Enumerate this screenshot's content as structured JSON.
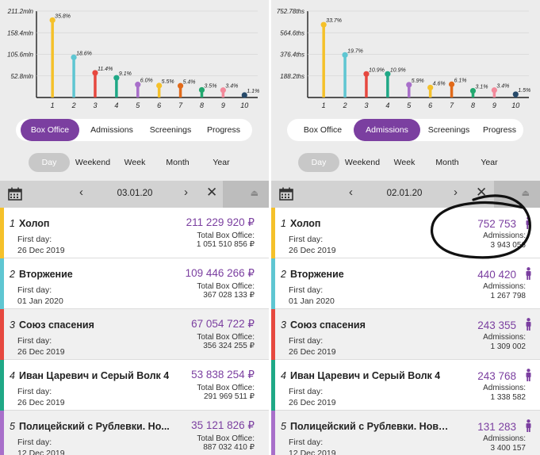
{
  "panels": [
    {
      "chart_data": {
        "type": "bar",
        "categories": [
          "1",
          "2",
          "3",
          "4",
          "5",
          "6",
          "7",
          "8",
          "9",
          "10"
        ],
        "values": [
          35.8,
          18.6,
          11.4,
          9.1,
          6.0,
          5.5,
          5.4,
          3.5,
          3.4,
          1.1
        ],
        "value_labels": [
          "35.8%",
          "18.6%",
          "11.4%",
          "9.1%",
          "6.0%",
          "5.5%",
          "5.4%",
          "3.5%",
          "3.4%",
          "1.1%"
        ],
        "yticks": [
          "211.2mln",
          "158.4mln",
          "105.6mln",
          "52.8mln"
        ],
        "ytick_values": [
          40.0,
          30.0,
          20.0,
          10.0
        ],
        "ylim": [
          0,
          40
        ],
        "colors": [
          "#f5c12a",
          "#5fc6d2",
          "#e6483f",
          "#1fa886",
          "#a86fca",
          "#f5c12a",
          "#e16a1a",
          "#23a86f",
          "#f38a9b",
          "#274a6a"
        ]
      },
      "tabs": [
        "Box Office",
        "Admissions",
        "Screenings",
        "Progress"
      ],
      "active_tab": 0,
      "periods": [
        "Day",
        "Weekend",
        "Week",
        "Month",
        "Year"
      ],
      "date": "03.01.20",
      "entries": [
        {
          "rank": "1",
          "title": "Холоп",
          "first_day_label": "First day:",
          "first_day": "26 Dec 2019",
          "value": "211 229 920 ₽",
          "total_label": "Total Box Office:",
          "total": "1 051 510 856 ₽",
          "color": "#f5c12a"
        },
        {
          "rank": "2",
          "title": "Вторжение",
          "first_day_label": "First day:",
          "first_day": "01 Jan 2020",
          "value": "109 446 266 ₽",
          "total_label": "Total Box Office:",
          "total": "367 028 133 ₽",
          "color": "#5fc6d2"
        },
        {
          "rank": "3",
          "title": "Союз спасения",
          "first_day_label": "First day:",
          "first_day": "26 Dec 2019",
          "value": "67 054 722 ₽",
          "total_label": "Total Box Office:",
          "total": "356 324 255 ₽",
          "color": "#e6483f"
        },
        {
          "rank": "4",
          "title": "Иван Царевич и Серый Волк 4",
          "first_day_label": "First day:",
          "first_day": "26 Dec 2019",
          "value": "53 838 254 ₽",
          "total_label": "Total Box Office:",
          "total": "291 969 511 ₽",
          "color": "#1fa886"
        },
        {
          "rank": "5",
          "title": "Полицейский с Рублевки. Но...",
          "first_day_label": "First day:",
          "first_day": "12 Dec 2019",
          "value": "35 121 826 ₽",
          "total_label": "Total Box Office:",
          "total": "887 032 410 ₽",
          "color": "#a86fca"
        }
      ]
    },
    {
      "chart_data": {
        "type": "bar",
        "categories": [
          "1",
          "2",
          "3",
          "4",
          "5",
          "6",
          "7",
          "8",
          "9",
          "10"
        ],
        "values": [
          33.7,
          19.7,
          10.9,
          10.9,
          5.9,
          4.6,
          6.1,
          3.1,
          3.4,
          1.5
        ],
        "value_labels": [
          "33.7%",
          "19.7%",
          "10.9%",
          "10.9%",
          "5.9%",
          "4.6%",
          "6.1%",
          "3.1%",
          "3.4%",
          "1.5%"
        ],
        "yticks": [
          "752.78ths",
          "564.6ths",
          "376.4ths",
          "188.2ths"
        ],
        "ytick_values": [
          40.0,
          30.0,
          20.0,
          10.0
        ],
        "ylim": [
          0,
          40
        ],
        "colors": [
          "#f5c12a",
          "#5fc6d2",
          "#e6483f",
          "#1fa886",
          "#a86fca",
          "#f5c12a",
          "#e16a1a",
          "#23a86f",
          "#f38a9b",
          "#274a6a"
        ]
      },
      "tabs": [
        "Box Office",
        "Admissions",
        "Screenings",
        "Progress"
      ],
      "active_tab": 1,
      "periods": [
        "Day",
        "Weekend",
        "Week",
        "Month",
        "Year"
      ],
      "date": "02.01.20",
      "entries": [
        {
          "rank": "1",
          "title": "Холоп",
          "first_day_label": "First day:",
          "first_day": "26 Dec 2019",
          "value": "752 753",
          "total_label": "Admissions:",
          "total": "3 943 056",
          "color": "#f5c12a"
        },
        {
          "rank": "2",
          "title": "Вторжение",
          "first_day_label": "First day:",
          "first_day": "01 Jan 2020",
          "value": "440 420",
          "total_label": "Admissions:",
          "total": "1 267 798",
          "color": "#5fc6d2"
        },
        {
          "rank": "3",
          "title": "Союз спасения",
          "first_day_label": "First day:",
          "first_day": "26 Dec 2019",
          "value": "243 355",
          "total_label": "Admissions:",
          "total": "1 309 002",
          "color": "#e6483f"
        },
        {
          "rank": "4",
          "title": "Иван Царевич и Серый Волк 4",
          "first_day_label": "First day:",
          "first_day": "26 Dec 2019",
          "value": "243 768",
          "total_label": "Admissions:",
          "total": "1 338 582",
          "color": "#1fa886"
        },
        {
          "rank": "5",
          "title": "Полицейский с Рублевки. Ново...",
          "first_day_label": "First day:",
          "first_day": "12 Dec 2019",
          "value": "131 283",
          "total_label": "Admissions:",
          "total": "3 400 157",
          "color": "#a86fca"
        }
      ]
    }
  ],
  "icons": {
    "calendar": "calendar-icon",
    "prev": "chevron-left-icon",
    "next": "chevron-right-icon",
    "close": "close-icon",
    "eject": "eject-icon",
    "person": "person-icon"
  },
  "colors": {
    "accent": "#7b3fa0",
    "navbar": "#d2d2d2",
    "background": "#ececec"
  }
}
